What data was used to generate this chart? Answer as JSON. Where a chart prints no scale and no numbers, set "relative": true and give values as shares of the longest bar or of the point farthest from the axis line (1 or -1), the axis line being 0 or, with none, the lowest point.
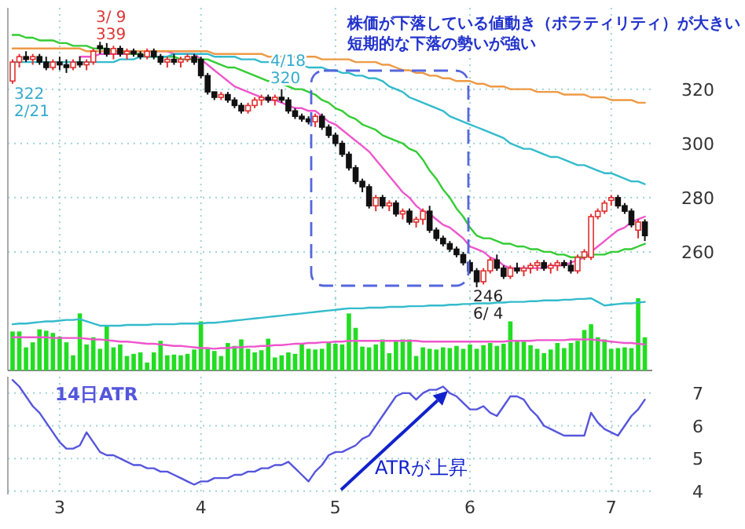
{
  "chart_data": [
    {
      "type": "candlestick",
      "tick_labels": "y",
      "grid": true,
      "categories": [
        null,
        null,
        null,
        null,
        null,
        null,
        null,
        "3",
        null,
        null,
        null,
        null,
        null,
        null,
        null,
        null,
        null,
        null,
        null,
        null,
        null,
        null,
        null,
        null,
        null,
        null,
        null,
        null,
        "4",
        null,
        null,
        null,
        null,
        null,
        null,
        null,
        null,
        null,
        null,
        null,
        null,
        null,
        null,
        null,
        null,
        null,
        null,
        null,
        "5",
        null,
        null,
        null,
        null,
        null,
        null,
        null,
        null,
        null,
        null,
        null,
        null,
        null,
        null,
        null,
        null,
        null,
        null,
        null,
        "6",
        null,
        null,
        null,
        null,
        null,
        null,
        null,
        null,
        null,
        null,
        null,
        null,
        null,
        null,
        null,
        null,
        null,
        null,
        null,
        null,
        "7",
        null,
        null,
        null,
        null,
        null
      ],
      "ylim": [
        240,
        350
      ],
      "yticks": [
        260,
        280,
        300,
        320
      ],
      "ohlc": [
        [
          323,
          331,
          322,
          330
        ],
        [
          330,
          333,
          328,
          332
        ],
        [
          332,
          334,
          330,
          331
        ],
        [
          331,
          333,
          329,
          332
        ],
        [
          332,
          333,
          329,
          330
        ],
        [
          330,
          332,
          327,
          328
        ],
        [
          328,
          331,
          327,
          330
        ],
        [
          330,
          332,
          327,
          329
        ],
        [
          329,
          331,
          326,
          328
        ],
        [
          328,
          331,
          327,
          330
        ],
        [
          330,
          332,
          328,
          329
        ],
        [
          329,
          331,
          327,
          330
        ],
        [
          330,
          335,
          329,
          334
        ],
        [
          336,
          339,
          333,
          335
        ],
        [
          335,
          337,
          332,
          333
        ],
        [
          333,
          336,
          331,
          335
        ],
        [
          335,
          336,
          332,
          333
        ],
        [
          333,
          335,
          331,
          334
        ],
        [
          334,
          335,
          332,
          333
        ],
        [
          333,
          334,
          331,
          332
        ],
        [
          332,
          335,
          331,
          334
        ],
        [
          334,
          335,
          331,
          332
        ],
        [
          332,
          333,
          329,
          330
        ],
        [
          330,
          332,
          328,
          331
        ],
        [
          331,
          333,
          329,
          330
        ],
        [
          330,
          332,
          328,
          331
        ],
        [
          331,
          333,
          330,
          332
        ],
        [
          332,
          333,
          329,
          330
        ],
        [
          331,
          332,
          324,
          325
        ],
        [
          325,
          326,
          318,
          319
        ],
        [
          319,
          319,
          316,
          317
        ],
        [
          317,
          319,
          316,
          318
        ],
        [
          318,
          319,
          315,
          316
        ],
        [
          316,
          317,
          313,
          314
        ],
        [
          314,
          315,
          311,
          312
        ],
        [
          312,
          315,
          311,
          314
        ],
        [
          314,
          317,
          313,
          316
        ],
        [
          316,
          318,
          314,
          317
        ],
        [
          317,
          318,
          315,
          316
        ],
        [
          316,
          318,
          314,
          317
        ],
        [
          317,
          320,
          315,
          316
        ],
        [
          316,
          317,
          311,
          312
        ],
        [
          312,
          313,
          309,
          310
        ],
        [
          310,
          311,
          308,
          309
        ],
        [
          309,
          310,
          307,
          308
        ],
        [
          308,
          311,
          306,
          310
        ],
        [
          310,
          311,
          305,
          306
        ],
        [
          306,
          307,
          302,
          303
        ],
        [
          303,
          304,
          299,
          300
        ],
        [
          300,
          301,
          295,
          296
        ],
        [
          296,
          297,
          290,
          291
        ],
        [
          291,
          292,
          285,
          286
        ],
        [
          286,
          287,
          282,
          284
        ],
        [
          284,
          285,
          276,
          277
        ],
        [
          277,
          281,
          275,
          280
        ],
        [
          280,
          281,
          276,
          277
        ],
        [
          277,
          279,
          275,
          278
        ],
        [
          278,
          279,
          273,
          274
        ],
        [
          274,
          276,
          272,
          275
        ],
        [
          275,
          276,
          270,
          271
        ],
        [
          271,
          273,
          269,
          272
        ],
        [
          272,
          276,
          270,
          275
        ],
        [
          275,
          277,
          267,
          268
        ],
        [
          268,
          269,
          264,
          265
        ],
        [
          265,
          266,
          262,
          263
        ],
        [
          263,
          264,
          260,
          261
        ],
        [
          261,
          262,
          258,
          259
        ],
        [
          259,
          260,
          255,
          256
        ],
        [
          256,
          257,
          252,
          253
        ],
        [
          253,
          254,
          246,
          249
        ],
        [
          249,
          254,
          248,
          253
        ],
        [
          253,
          258,
          252,
          257
        ],
        [
          257,
          259,
          253,
          254
        ],
        [
          254,
          255,
          250,
          251
        ],
        [
          251,
          255,
          250,
          254
        ],
        [
          254,
          256,
          252,
          253
        ],
        [
          253,
          255,
          251,
          254
        ],
        [
          254,
          256,
          252,
          255
        ],
        [
          255,
          257,
          253,
          256
        ],
        [
          256,
          257,
          253,
          254
        ],
        [
          254,
          256,
          252,
          255
        ],
        [
          255,
          257,
          253,
          256
        ],
        [
          256,
          257,
          254,
          255
        ],
        [
          255,
          257,
          252,
          253
        ],
        [
          253,
          259,
          252,
          258
        ],
        [
          258,
          261,
          257,
          260
        ],
        [
          258,
          274,
          257,
          273
        ],
        [
          273,
          276,
          272,
          275
        ],
        [
          275,
          279,
          274,
          278
        ],
        [
          279,
          281,
          277,
          280
        ],
        [
          280,
          281,
          276,
          277
        ],
        [
          277,
          278,
          274,
          275
        ],
        [
          275,
          276,
          269,
          270
        ],
        [
          268,
          272,
          265,
          271
        ],
        [
          271,
          272,
          264,
          266
        ]
      ],
      "series": [
        {
          "type": "line",
          "color": "#ee55cc",
          "values": [
            null,
            null,
            null,
            null,
            null,
            null,
            null,
            null,
            null,
            null,
            332,
            332,
            332,
            333,
            333,
            333,
            333,
            333,
            334,
            334,
            334,
            334,
            334,
            334,
            333,
            333,
            333,
            333,
            331,
            329,
            327,
            325,
            323,
            321,
            320,
            319,
            318,
            317,
            316,
            316,
            315,
            314,
            313,
            313,
            312,
            312,
            310,
            308,
            307,
            305,
            303,
            301,
            299,
            297,
            294,
            291,
            288,
            285,
            282,
            280,
            277,
            275,
            274,
            272,
            270,
            269,
            267,
            265,
            262,
            261,
            260,
            258,
            257,
            255,
            254,
            254,
            254,
            254,
            254,
            254,
            255,
            255,
            255,
            256,
            257,
            258,
            260,
            262,
            264,
            266,
            268,
            269,
            271,
            272,
            273
          ]
        },
        {
          "type": "line",
          "color": "#33cc33",
          "values": [
            340,
            340,
            339,
            339,
            338,
            338,
            338,
            337,
            337,
            336,
            336,
            336,
            335,
            335,
            335,
            334,
            334,
            333,
            333,
            333,
            332,
            332,
            332,
            332,
            332,
            331,
            331,
            331,
            331,
            331,
            330,
            329,
            328,
            328,
            327,
            326,
            325,
            324,
            323,
            323,
            322,
            321,
            320,
            320,
            319,
            318,
            316,
            315,
            313,
            312,
            310,
            309,
            307,
            306,
            305,
            303,
            302,
            301,
            300,
            298,
            297,
            294,
            290,
            287,
            283,
            280,
            276,
            273,
            269,
            266,
            265,
            265,
            264,
            263,
            263,
            262,
            262,
            261,
            261,
            260,
            260,
            259,
            259,
            258,
            258,
            258,
            259,
            259,
            259,
            260,
            260,
            261,
            261,
            262,
            263
          ]
        },
        {
          "type": "line",
          "color": "#33bbcc",
          "values": [
            330,
            330,
            330,
            330,
            330,
            330,
            330,
            330,
            330,
            330,
            330,
            330,
            330,
            330,
            330,
            330,
            331,
            331,
            331,
            332,
            332,
            332,
            332,
            332,
            333,
            333,
            333,
            333,
            333,
            333,
            332,
            332,
            332,
            332,
            331,
            331,
            331,
            330,
            330,
            330,
            329,
            329,
            329,
            329,
            328,
            328,
            328,
            327,
            327,
            326,
            326,
            325,
            325,
            324,
            324,
            323,
            321,
            320,
            319,
            317,
            316,
            315,
            314,
            313,
            312,
            310,
            309,
            308,
            307,
            306,
            305,
            304,
            303,
            302,
            300,
            299,
            298,
            298,
            297,
            296,
            295,
            295,
            294,
            293,
            292,
            292,
            291,
            290,
            289,
            289,
            288,
            287,
            286,
            286,
            285
          ]
        },
        {
          "type": "line",
          "color": "#ee9944",
          "values": [
            335,
            335,
            335,
            335,
            335,
            335,
            335,
            335,
            335,
            335,
            335,
            334,
            334,
            334,
            334,
            334,
            334,
            334,
            334,
            334,
            334,
            334,
            334,
            334,
            334,
            334,
            334,
            334,
            334,
            334,
            333,
            333,
            333,
            333,
            333,
            333,
            333,
            333,
            332,
            332,
            332,
            332,
            332,
            332,
            332,
            332,
            331,
            331,
            331,
            331,
            331,
            330,
            330,
            330,
            330,
            329,
            329,
            328,
            327,
            327,
            326,
            326,
            325,
            325,
            324,
            324,
            323,
            323,
            323,
            322,
            322,
            321,
            321,
            321,
            320,
            320,
            320,
            320,
            319,
            319,
            319,
            319,
            318,
            318,
            318,
            318,
            317,
            317,
            317,
            316,
            316,
            316,
            316,
            315,
            315
          ]
        }
      ],
      "annotations": [
        "株価が下落している値動き（ボラティリティ）が大きい",
        "短期的な下落の勢いが強い",
        "322\n2/21",
        "3/ 9\n339",
        "4/18\n320",
        "246\n6/ 4"
      ]
    },
    {
      "type": "bar",
      "relative": true,
      "tick_labels": false,
      "grid": true,
      "categories": [
        null,
        null,
        null,
        null,
        null,
        null,
        null,
        "3",
        null,
        null,
        null,
        null,
        null,
        null,
        null,
        null,
        null,
        null,
        null,
        null,
        null,
        null,
        null,
        null,
        null,
        null,
        null,
        null,
        "4",
        null,
        null,
        null,
        null,
        null,
        null,
        null,
        null,
        null,
        null,
        null,
        null,
        null,
        null,
        null,
        null,
        null,
        null,
        null,
        "5",
        null,
        null,
        null,
        null,
        null,
        null,
        null,
        null,
        null,
        null,
        null,
        null,
        null,
        null,
        null,
        null,
        null,
        null,
        null,
        "6",
        null,
        null,
        null,
        null,
        null,
        null,
        null,
        null,
        null,
        null,
        null,
        null,
        null,
        null,
        null,
        null,
        null,
        null,
        null,
        null,
        "7",
        null,
        null,
        null,
        null,
        null
      ],
      "series": [
        {
          "color": "#22dd22",
          "values": [
            0.54,
            0.54,
            0.32,
            0.39,
            0.57,
            0.55,
            0.52,
            0.47,
            0.39,
            0.21,
            0.79,
            0.36,
            0.46,
            0.3,
            0.61,
            0.32,
            0.36,
            0.2,
            0.23,
            0.25,
            0.11,
            0.25,
            0.41,
            0.21,
            0.22,
            0.21,
            0.23,
            0.29,
            0.68,
            0.3,
            0.27,
            0.2,
            0.38,
            0.34,
            0.43,
            0.3,
            0.25,
            0.28,
            0.44,
            0.18,
            0.21,
            0.25,
            0.23,
            0.38,
            0.3,
            0.29,
            0.3,
            0.38,
            0.37,
            0.36,
            0.79,
            0.59,
            0.33,
            0.32,
            0.36,
            0.43,
            0.24,
            0.41,
            0.43,
            0.43,
            0.2,
            0.32,
            0.3,
            0.29,
            0.32,
            0.31,
            0.34,
            0.3,
            0.36,
            0.3,
            0.35,
            0.38,
            0.34,
            0.37,
            0.68,
            0.42,
            0.4,
            0.35,
            0.3,
            0.24,
            0.29,
            0.38,
            0.31,
            0.38,
            0.41,
            0.56,
            0.64,
            0.46,
            0.43,
            0.3,
            0.31,
            0.32,
            0.31,
            1.0,
            0.46
          ]
        },
        {
          "type": "line",
          "color": "#33bbcc",
          "values": [
            0.64,
            0.65,
            0.65,
            0.66,
            0.67,
            0.68,
            0.68,
            0.69,
            0.7,
            0.7,
            0.71,
            0.68,
            0.65,
            0.62,
            0.62,
            0.62,
            0.62,
            0.63,
            0.63,
            0.63,
            0.63,
            0.64,
            0.64,
            0.64,
            0.64,
            0.65,
            0.65,
            0.65,
            0.65,
            0.66,
            0.66,
            0.67,
            0.68,
            0.69,
            0.7,
            0.71,
            0.72,
            0.73,
            0.74,
            0.75,
            0.76,
            0.77,
            0.78,
            0.79,
            0.8,
            0.81,
            0.82,
            0.83,
            0.84,
            0.85,
            0.86,
            0.86,
            0.86,
            0.87,
            0.87,
            0.87,
            0.88,
            0.88,
            0.88,
            0.89,
            0.89,
            0.89,
            0.9,
            0.9,
            0.9,
            0.91,
            0.91,
            0.92,
            0.92,
            0.93,
            0.93,
            0.93,
            0.94,
            0.94,
            0.95,
            0.95,
            0.95,
            0.96,
            0.96,
            0.97,
            0.97,
            0.97,
            0.98,
            0.98,
            0.99,
            0.99,
            1.0,
            0.95,
            0.9,
            0.91,
            0.92,
            0.93,
            0.93,
            0.94,
            0.95
          ]
        },
        {
          "type": "line",
          "color": "#ee55cc",
          "values": [
            0.46,
            0.46,
            0.46,
            0.46,
            0.46,
            0.46,
            0.45,
            0.45,
            0.45,
            0.45,
            0.45,
            0.44,
            0.43,
            0.43,
            0.42,
            0.41,
            0.4,
            0.4,
            0.39,
            0.38,
            0.37,
            0.37,
            0.36,
            0.35,
            0.34,
            0.34,
            0.33,
            0.32,
            0.31,
            0.31,
            0.3,
            0.31,
            0.31,
            0.32,
            0.32,
            0.33,
            0.33,
            0.34,
            0.34,
            0.35,
            0.35,
            0.36,
            0.37,
            0.37,
            0.38,
            0.38,
            0.39,
            0.39,
            0.4,
            0.4,
            0.41,
            0.41,
            0.41,
            0.41,
            0.41,
            0.41,
            0.41,
            0.41,
            0.41,
            0.41,
            0.41,
            0.4,
            0.4,
            0.4,
            0.4,
            0.4,
            0.4,
            0.4,
            0.4,
            0.4,
            0.4,
            0.4,
            0.4,
            0.4,
            0.41,
            0.41,
            0.41,
            0.41,
            0.42,
            0.42,
            0.42,
            0.42,
            0.42,
            0.43,
            0.43,
            0.43,
            0.43,
            0.42,
            0.41,
            0.4,
            0.39,
            0.38,
            0.38,
            0.37,
            0.36
          ]
        }
      ]
    },
    {
      "type": "line",
      "grid": true,
      "categories": [
        null,
        null,
        null,
        null,
        null,
        null,
        null,
        "3",
        null,
        null,
        null,
        null,
        null,
        null,
        null,
        null,
        null,
        null,
        null,
        null,
        null,
        null,
        null,
        null,
        null,
        null,
        null,
        null,
        "4",
        null,
        null,
        null,
        null,
        null,
        null,
        null,
        null,
        null,
        null,
        null,
        null,
        null,
        null,
        null,
        null,
        null,
        null,
        null,
        "5",
        null,
        null,
        null,
        null,
        null,
        null,
        null,
        null,
        null,
        null,
        null,
        null,
        null,
        null,
        null,
        null,
        null,
        null,
        null,
        "6",
        null,
        null,
        null,
        null,
        null,
        null,
        null,
        null,
        null,
        null,
        null,
        null,
        null,
        null,
        null,
        null,
        null,
        null,
        null,
        null,
        "7",
        null,
        null,
        null,
        null,
        null
      ],
      "ylim": [
        3.9,
        7.5
      ],
      "yticks": [
        4,
        5,
        6,
        7
      ],
      "series": [
        {
          "name": "14日ATR",
          "color": "#5555dd",
          "values": [
            7.4,
            7.2,
            6.9,
            6.6,
            6.4,
            6.1,
            5.8,
            5.5,
            5.3,
            5.3,
            5.4,
            5.8,
            5.5,
            5.2,
            5.1,
            5.1,
            5.0,
            4.9,
            4.8,
            4.8,
            4.7,
            4.7,
            4.6,
            4.6,
            4.5,
            4.4,
            4.3,
            4.2,
            4.3,
            4.3,
            4.4,
            4.4,
            4.4,
            4.5,
            4.5,
            4.6,
            4.6,
            4.7,
            4.7,
            4.8,
            4.8,
            4.9,
            4.7,
            4.5,
            4.3,
            4.6,
            4.8,
            5.1,
            5.2,
            5.2,
            5.3,
            5.4,
            5.6,
            5.7,
            6.0,
            6.3,
            6.6,
            6.9,
            7.0,
            7.0,
            6.8,
            7.0,
            7.1,
            7.1,
            7.2,
            7.0,
            6.9,
            6.7,
            6.5,
            6.5,
            6.6,
            6.4,
            6.3,
            6.6,
            6.9,
            6.9,
            6.8,
            6.5,
            6.3,
            6.0,
            5.9,
            5.8,
            5.7,
            5.7,
            5.7,
            5.7,
            6.4,
            6.1,
            5.9,
            5.8,
            5.7,
            6.0,
            6.3,
            6.5,
            6.8
          ]
        }
      ],
      "annotations": [
        "ATRが上昇"
      ]
    }
  ]
}
